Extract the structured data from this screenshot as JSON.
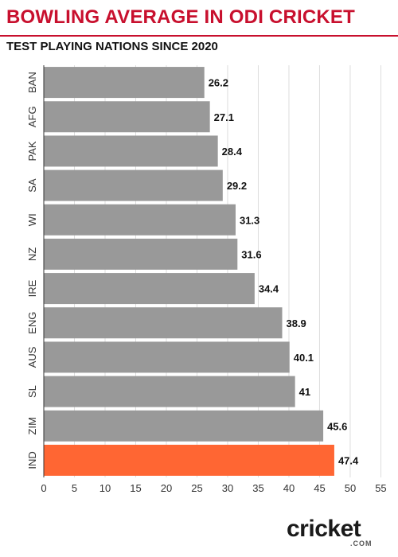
{
  "header": {
    "title": "BOWLING AVERAGE IN ODI CRICKET",
    "subtitle": "TEST PLAYING NATIONS SINCE 2020"
  },
  "brand": {
    "logo_text": "cricket",
    "logo_sub": ".COM"
  },
  "colors": {
    "title": "#c8102e",
    "bar": "#999999",
    "highlight": "#ff6633",
    "grid": "#dddddd",
    "axis": "#333333"
  },
  "chart_data": {
    "type": "bar",
    "orientation": "horizontal",
    "categories": [
      "BAN",
      "AFG",
      "PAK",
      "SA",
      "WI",
      "NZ",
      "IRE",
      "ENG",
      "AUS",
      "SL",
      "ZIM",
      "IND"
    ],
    "values": [
      26.2,
      27.1,
      28.4,
      29.2,
      31.3,
      31.6,
      34.4,
      38.9,
      40.1,
      41,
      45.6,
      47.4
    ],
    "data_labels": [
      "26.2",
      "27.1",
      "28.4",
      "29.2",
      "31.3",
      "31.6",
      "34.4",
      "38.9",
      "40.1",
      "41",
      "45.6",
      "47.4"
    ],
    "highlight_category": "IND",
    "xlim": [
      0,
      55
    ],
    "xticks": [
      0,
      5,
      10,
      15,
      20,
      25,
      30,
      35,
      40,
      45,
      50,
      55
    ],
    "grid": true,
    "legend": false
  }
}
